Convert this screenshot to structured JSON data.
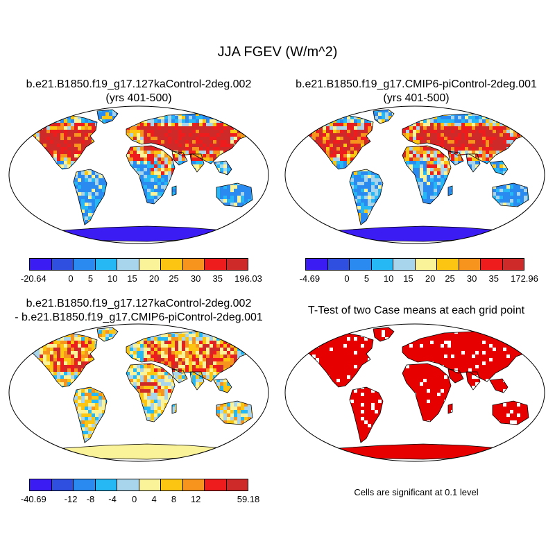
{
  "main_title": "JJA FGEV (W/m^2)",
  "panels": {
    "top_left": {
      "title_line1": "b.e21.B1850.f19_g17.127kaControl-2deg.002",
      "title_line2": "(yrs 401-500)",
      "colorbar_labels": [
        "-20.64",
        "0",
        "5",
        "10",
        "15",
        "20",
        "25",
        "30",
        "35",
        "196.03"
      ]
    },
    "top_right": {
      "title_line1": "b.e21.B1850.f19_g17.CMIP6-piControl-2deg.001",
      "title_line2": "(yrs 401-500)",
      "colorbar_labels": [
        "-4.69",
        "0",
        "5",
        "10",
        "15",
        "20",
        "25",
        "30",
        "35",
        "172.96"
      ]
    },
    "bottom_left": {
      "title_line1": "b.e21.B1850.f19_g17.127kaControl-2deg.002",
      "title_line2": "- b.e21.B1850.f19_g17.CMIP6-piControl-2deg.001",
      "colorbar_labels": [
        "-40.69",
        "-12",
        "-8",
        "-4",
        "0",
        "4",
        "8",
        "12",
        "59.18"
      ]
    },
    "bottom_right": {
      "title": "T-Test of two Case means at each grid point",
      "note": "Cells are significant at 0.1 level"
    }
  },
  "colorbar_colors": [
    "#3b1cf2",
    "#2f4fe0",
    "#2a8af0",
    "#25b8f5",
    "#a8d4ec",
    "#fbf39a",
    "#fcc512",
    "#f7941d",
    "#ee1c1c",
    "#cf2a2a"
  ],
  "colors": {
    "ocean": "#ffffff",
    "land_cool": "#2a8af0",
    "land_hot": "#ee1c1c",
    "ttest_land": "#e60000",
    "antarctica_full": "#3b1cf2",
    "antarctica_diff": "#fbf39a",
    "outline": "#000000"
  }
}
